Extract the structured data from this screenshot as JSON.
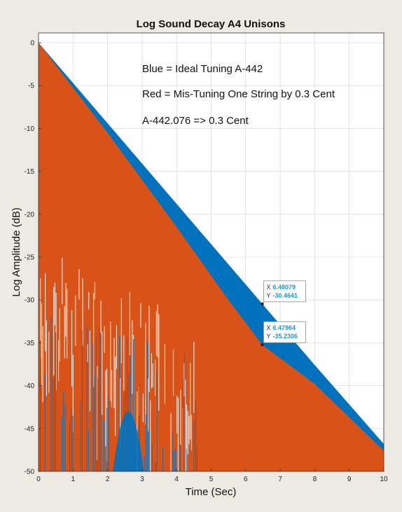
{
  "chart_data": {
    "type": "area",
    "title": "Log Sound Decay A4 Unisons",
    "xlabel": "Time (Sec)",
    "ylabel": "Log Amplitude (dB)",
    "xlim": [
      0,
      10
    ],
    "ylim": [
      -50,
      0
    ],
    "xticks": [
      0,
      1,
      2,
      3,
      4,
      5,
      6,
      7,
      8,
      9,
      10
    ],
    "yticks": [
      0,
      -5,
      -10,
      -15,
      -20,
      -25,
      -30,
      -35,
      -40,
      -45,
      -50
    ],
    "grid": true,
    "series": [
      {
        "color": "#0072bd",
        "envelope_x": [
          0,
          2,
          4,
          6,
          6.48,
          8,
          10
        ],
        "envelope_y": [
          0,
          -9.4,
          -18.8,
          -28.2,
          -30.46,
          -37.6,
          -46.8
        ]
      },
      {
        "color": "#d95319",
        "envelope_x": [
          0,
          2,
          4,
          5.5,
          6.48,
          8,
          10
        ],
        "envelope_y": [
          0,
          -10.5,
          -21.5,
          -30.0,
          -35.23,
          -39.8,
          -47.6
        ]
      }
    ],
    "annotations": [
      "Blue = Ideal Tuning A-442",
      "Red = Mis-Tuning One String by 0.3 Cent",
      "A-442.076 => 0.3 Cent"
    ],
    "datatips": [
      {
        "x_label": "X",
        "y_label": "Y",
        "x": 6.48079,
        "y": -30.4641,
        "x_text": "6.48079",
        "y_text": "-30.4641"
      },
      {
        "x_label": "X",
        "y_label": "Y",
        "x": 6.47964,
        "y": -35.2306,
        "x_text": "6.47964",
        "y_text": "-35.2306"
      }
    ]
  }
}
